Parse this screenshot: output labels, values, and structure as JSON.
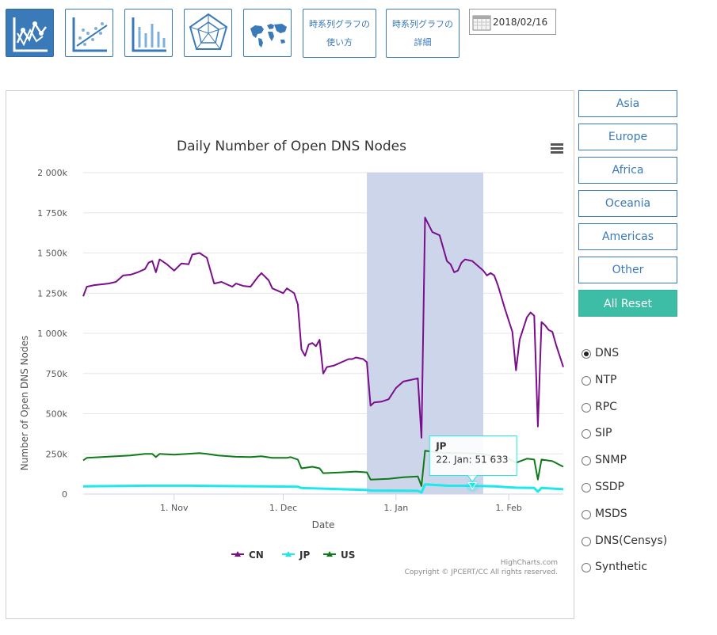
{
  "toolbar": {
    "icons": [
      {
        "name": "line-chart-icon",
        "active": true
      },
      {
        "name": "scatter-trend-icon",
        "active": false
      },
      {
        "name": "bar-chart-icon",
        "active": false
      },
      {
        "name": "radar-chart-icon",
        "active": false
      },
      {
        "name": "world-map-icon",
        "active": false
      }
    ],
    "howto_line1": "時系列グラフの",
    "howto_line2": "使い方",
    "details_line1": "時系列グラフの",
    "details_line2": "詳細",
    "date_value": "2018/02/16",
    "accent_color": "#3a7ab8"
  },
  "chart_data": {
    "type": "line",
    "title": "Daily Number of Open DNS Nodes",
    "xlabel": "Date",
    "ylabel": "Number of Open DNS Nodes",
    "yticks": [
      "0",
      "250k",
      "500k",
      "750k",
      "1 000k",
      "1 250k",
      "1 500k",
      "1 750k",
      "2 000k"
    ],
    "ylim": [
      0,
      2000000
    ],
    "xlim": [
      "2017-10-07",
      "2018-02-16"
    ],
    "xticks": [
      {
        "date": "2017-11-01",
        "label": "1. Nov"
      },
      {
        "date": "2017-12-01",
        "label": "1. Dec"
      },
      {
        "date": "2018-01-01",
        "label": "1. Jan"
      },
      {
        "date": "2018-02-01",
        "label": "1. Feb"
      }
    ],
    "highlight_band": [
      "2017-12-24",
      "2018-01-25"
    ],
    "series": [
      {
        "name": "CN",
        "color": "#7b0e8a",
        "points": [
          [
            "2017-10-07",
            1230000
          ],
          [
            "2017-10-08",
            1290000
          ],
          [
            "2017-10-10",
            1300000
          ],
          [
            "2017-10-12",
            1305000
          ],
          [
            "2017-10-14",
            1310000
          ],
          [
            "2017-10-16",
            1320000
          ],
          [
            "2017-10-18",
            1360000
          ],
          [
            "2017-10-20",
            1365000
          ],
          [
            "2017-10-22",
            1380000
          ],
          [
            "2017-10-24",
            1400000
          ],
          [
            "2017-10-25",
            1440000
          ],
          [
            "2017-10-26",
            1450000
          ],
          [
            "2017-10-27",
            1380000
          ],
          [
            "2017-10-28",
            1460000
          ],
          [
            "2017-10-30",
            1430000
          ],
          [
            "2017-11-01",
            1390000
          ],
          [
            "2017-11-03",
            1435000
          ],
          [
            "2017-11-05",
            1430000
          ],
          [
            "2017-11-06",
            1490000
          ],
          [
            "2017-11-08",
            1500000
          ],
          [
            "2017-11-10",
            1470000
          ],
          [
            "2017-11-12",
            1310000
          ],
          [
            "2017-11-14",
            1320000
          ],
          [
            "2017-11-16",
            1300000
          ],
          [
            "2017-11-17",
            1290000
          ],
          [
            "2017-11-18",
            1310000
          ],
          [
            "2017-11-20",
            1295000
          ],
          [
            "2017-11-22",
            1290000
          ],
          [
            "2017-11-24",
            1350000
          ],
          [
            "2017-11-25",
            1375000
          ],
          [
            "2017-11-27",
            1330000
          ],
          [
            "2017-11-28",
            1280000
          ],
          [
            "2017-11-30",
            1260000
          ],
          [
            "2017-12-01",
            1250000
          ],
          [
            "2017-12-02",
            1280000
          ],
          [
            "2017-12-04",
            1250000
          ],
          [
            "2017-12-05",
            1180000
          ],
          [
            "2017-12-06",
            900000
          ],
          [
            "2017-12-07",
            860000
          ],
          [
            "2017-12-08",
            930000
          ],
          [
            "2017-12-09",
            940000
          ],
          [
            "2017-12-10",
            920000
          ],
          [
            "2017-12-11",
            960000
          ],
          [
            "2017-12-12",
            750000
          ],
          [
            "2017-12-13",
            790000
          ],
          [
            "2017-12-15",
            800000
          ],
          [
            "2017-12-17",
            820000
          ],
          [
            "2017-12-19",
            840000
          ],
          [
            "2017-12-20",
            840000
          ],
          [
            "2017-12-21",
            850000
          ],
          [
            "2017-12-23",
            840000
          ],
          [
            "2017-12-24",
            820000
          ],
          [
            "2017-12-25",
            550000
          ],
          [
            "2017-12-26",
            570000
          ],
          [
            "2017-12-28",
            575000
          ],
          [
            "2017-12-30",
            590000
          ],
          [
            "2018-01-01",
            660000
          ],
          [
            "2018-01-03",
            700000
          ],
          [
            "2018-01-05",
            710000
          ],
          [
            "2018-01-07",
            720000
          ],
          [
            "2018-01-08",
            350000
          ],
          [
            "2018-01-09",
            1720000
          ],
          [
            "2018-01-11",
            1630000
          ],
          [
            "2018-01-13",
            1610000
          ],
          [
            "2018-01-15",
            1450000
          ],
          [
            "2018-01-16",
            1430000
          ],
          [
            "2018-01-17",
            1380000
          ],
          [
            "2018-01-18",
            1390000
          ],
          [
            "2018-01-19",
            1440000
          ],
          [
            "2018-01-20",
            1460000
          ],
          [
            "2018-01-22",
            1450000
          ],
          [
            "2018-01-24",
            1410000
          ],
          [
            "2018-01-25",
            1390000
          ],
          [
            "2018-01-26",
            1360000
          ],
          [
            "2018-01-27",
            1375000
          ],
          [
            "2018-01-28",
            1360000
          ],
          [
            "2018-01-29",
            1300000
          ],
          [
            "2018-01-31",
            1150000
          ],
          [
            "2018-02-02",
            1010000
          ],
          [
            "2018-02-03",
            770000
          ],
          [
            "2018-02-04",
            960000
          ],
          [
            "2018-02-06",
            1100000
          ],
          [
            "2018-02-07",
            1130000
          ],
          [
            "2018-02-08",
            1110000
          ],
          [
            "2018-02-09",
            420000
          ],
          [
            "2018-02-10",
            1070000
          ],
          [
            "2018-02-11",
            1050000
          ],
          [
            "2018-02-12",
            1020000
          ],
          [
            "2018-02-13",
            1010000
          ],
          [
            "2018-02-14",
            930000
          ],
          [
            "2018-02-16",
            790000
          ]
        ]
      },
      {
        "name": "JP",
        "color": "#1de9ea",
        "points": [
          [
            "2017-10-07",
            48000
          ],
          [
            "2017-10-15",
            50000
          ],
          [
            "2017-10-25",
            52000
          ],
          [
            "2017-11-05",
            52000
          ],
          [
            "2017-11-15",
            50000
          ],
          [
            "2017-11-25",
            48000
          ],
          [
            "2017-12-05",
            46000
          ],
          [
            "2017-12-06",
            38000
          ],
          [
            "2017-12-12",
            34000
          ],
          [
            "2017-12-24",
            25000
          ],
          [
            "2017-12-25",
            22000
          ],
          [
            "2018-01-07",
            20000
          ],
          [
            "2018-01-08",
            10000
          ],
          [
            "2018-01-09",
            60000
          ],
          [
            "2018-01-15",
            52000
          ],
          [
            "2018-01-22",
            51633
          ],
          [
            "2018-01-28",
            48000
          ],
          [
            "2018-02-03",
            40000
          ],
          [
            "2018-02-08",
            38000
          ],
          [
            "2018-02-09",
            15000
          ],
          [
            "2018-02-10",
            38000
          ],
          [
            "2018-02-16",
            30000
          ]
        ]
      },
      {
        "name": "US",
        "color": "#0e7a1a",
        "points": [
          [
            "2017-10-07",
            210000
          ],
          [
            "2017-10-08",
            225000
          ],
          [
            "2017-10-12",
            230000
          ],
          [
            "2017-10-16",
            235000
          ],
          [
            "2017-10-20",
            240000
          ],
          [
            "2017-10-24",
            250000
          ],
          [
            "2017-10-26",
            250000
          ],
          [
            "2017-10-27",
            230000
          ],
          [
            "2017-10-28",
            250000
          ],
          [
            "2017-11-01",
            245000
          ],
          [
            "2017-11-08",
            255000
          ],
          [
            "2017-11-10",
            250000
          ],
          [
            "2017-11-13",
            240000
          ],
          [
            "2017-11-18",
            232000
          ],
          [
            "2017-11-22",
            230000
          ],
          [
            "2017-11-25",
            235000
          ],
          [
            "2017-11-28",
            225000
          ],
          [
            "2017-12-02",
            225000
          ],
          [
            "2017-12-03",
            230000
          ],
          [
            "2017-12-05",
            215000
          ],
          [
            "2017-12-06",
            160000
          ],
          [
            "2017-12-09",
            170000
          ],
          [
            "2017-12-11",
            160000
          ],
          [
            "2017-12-12",
            130000
          ],
          [
            "2017-12-17",
            135000
          ],
          [
            "2017-12-21",
            140000
          ],
          [
            "2017-12-24",
            135000
          ],
          [
            "2017-12-25",
            90000
          ],
          [
            "2017-12-30",
            95000
          ],
          [
            "2018-01-03",
            105000
          ],
          [
            "2018-01-07",
            110000
          ],
          [
            "2018-01-08",
            50000
          ],
          [
            "2018-01-09",
            270000
          ],
          [
            "2018-01-12",
            260000
          ],
          [
            "2018-01-16",
            255000
          ],
          [
            "2018-01-20",
            255000
          ],
          [
            "2018-01-25",
            250000
          ],
          [
            "2018-01-28",
            235000
          ],
          [
            "2018-02-01",
            220000
          ],
          [
            "2018-02-03",
            195000
          ],
          [
            "2018-02-06",
            220000
          ],
          [
            "2018-02-08",
            215000
          ],
          [
            "2018-02-09",
            90000
          ],
          [
            "2018-02-10",
            215000
          ],
          [
            "2018-02-13",
            205000
          ],
          [
            "2018-02-16",
            170000
          ]
        ]
      }
    ],
    "tooltip": {
      "series": "JP",
      "date": "2018-01-22",
      "text": "22. Jan: 51 633",
      "color": "#1de9ea"
    },
    "legend": [
      "CN",
      "JP",
      "US"
    ],
    "credit": "HighCharts.com",
    "copyright": "Copyright © JPCERT/CC All rights reserved.",
    "grid": true
  },
  "sidebar": {
    "regions": [
      "Asia",
      "Europe",
      "Africa",
      "Oceania",
      "Americas",
      "Other"
    ],
    "reset_label": "All Reset",
    "reset_color": "#3dbda5",
    "protocols": [
      "DNS",
      "NTP",
      "RPC",
      "SIP",
      "SNMP",
      "SSDP",
      "MSDS",
      "DNS(Censys)",
      "Synthetic"
    ],
    "selected_protocol": "DNS"
  }
}
